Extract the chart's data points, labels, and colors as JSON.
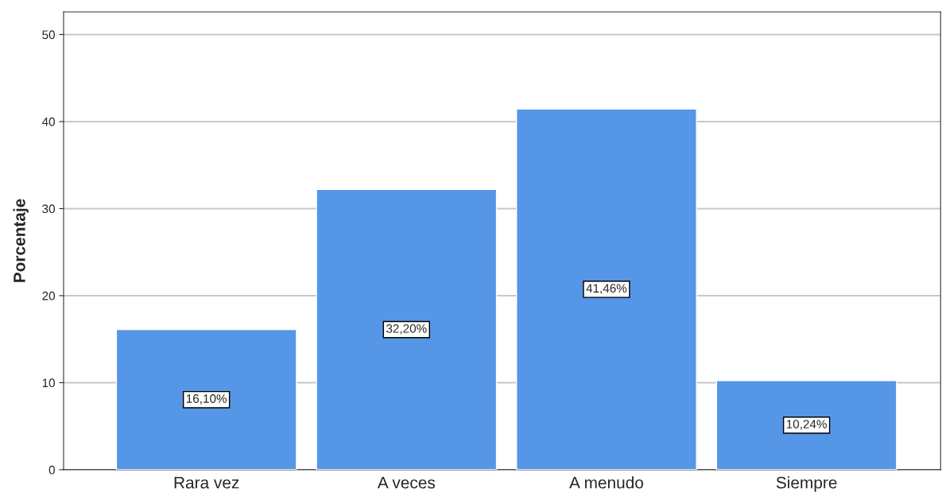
{
  "chart_data": {
    "type": "bar",
    "ylabel": "Porcentaje",
    "categories": [
      "Rara vez",
      "A veces",
      "A menudo",
      "Siempre"
    ],
    "values": [
      16.1,
      32.2,
      41.46,
      10.24
    ],
    "value_labels": [
      "16,10%",
      "32,20%",
      "41,46%",
      "10,24%"
    ],
    "color": "#5596e6",
    "ylim": [
      0,
      52.6
    ],
    "yticks": [
      0,
      10,
      20,
      30,
      40,
      50
    ],
    "grid": "y"
  }
}
